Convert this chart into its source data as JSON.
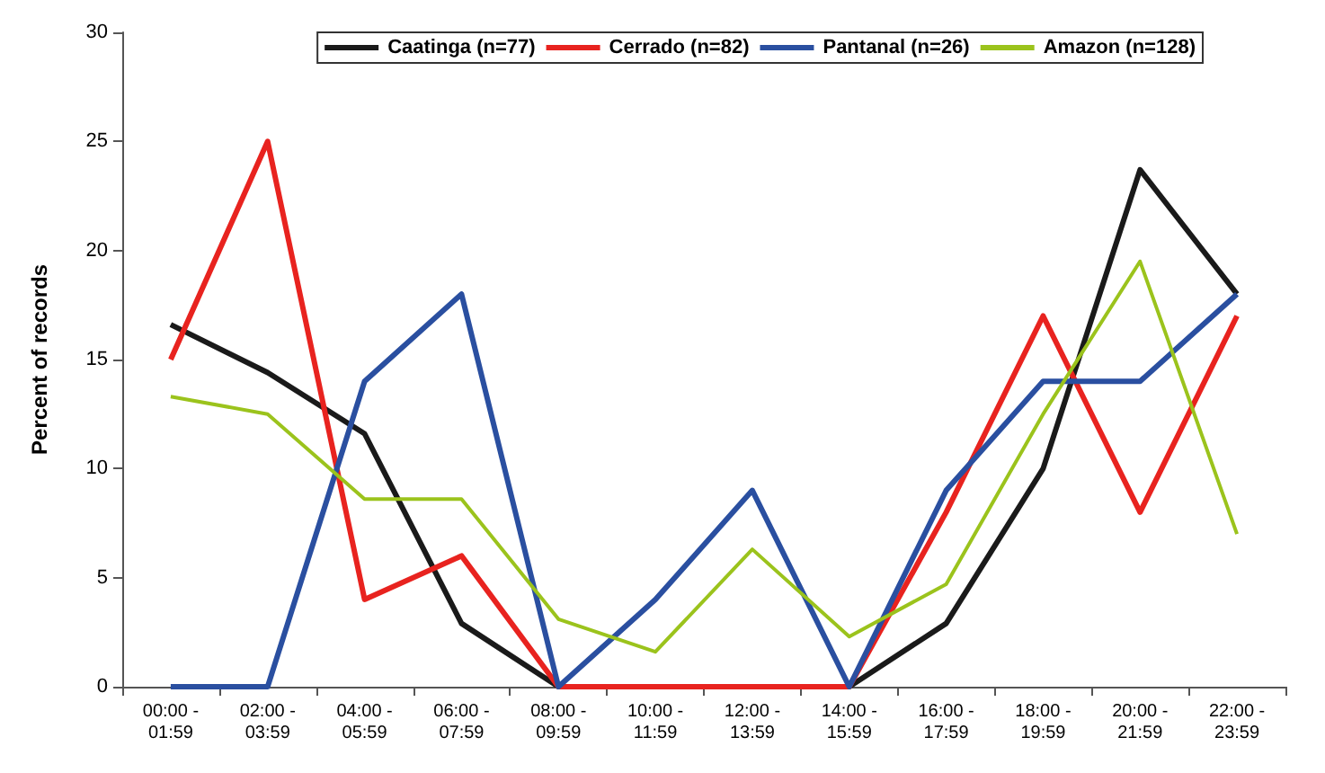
{
  "chart_data": {
    "type": "line",
    "ylabel": "Percent of records",
    "categories": [
      "00:00 -\n01:59",
      "02:00 -\n03:59",
      "04:00 -\n05:59",
      "06:00 -\n07:59",
      "08:00 -\n09:59",
      "10:00 -\n11:59",
      "12:00 -\n13:59",
      "14:00 -\n15:59",
      "16:00 -\n17:59",
      "18:00 -\n19:59",
      "20:00 -\n21:59",
      "22:00 -\n23:59"
    ],
    "series": [
      {
        "name": "Caatinga (n=77)",
        "color": "#1a1a1a",
        "values": [
          16.6,
          14.4,
          11.6,
          2.9,
          0,
          0,
          0,
          0,
          2.9,
          10,
          23.7,
          18
        ]
      },
      {
        "name": "Cerrado (n=82)",
        "color": "#e8231f",
        "values": [
          15,
          25,
          4,
          6,
          0,
          0,
          0,
          0,
          8,
          17,
          8,
          17
        ]
      },
      {
        "name": "Pantanal (n=26)",
        "color": "#2a4fa0",
        "values": [
          0,
          0,
          14,
          18,
          0,
          4,
          9,
          0,
          9,
          14,
          14,
          18
        ]
      },
      {
        "name": "Amazon (n=128)",
        "color": "#9bc31c",
        "values": [
          13.3,
          12.5,
          8.6,
          8.6,
          3.1,
          1.6,
          6.3,
          2.3,
          4.7,
          12.5,
          19.5,
          7
        ]
      }
    ],
    "ylim": [
      0,
      30
    ],
    "yticks": [
      0,
      5,
      10,
      15,
      20,
      25,
      30
    ],
    "grid": false,
    "legend": "top right",
    "marker": "none",
    "line_style": "solid"
  }
}
